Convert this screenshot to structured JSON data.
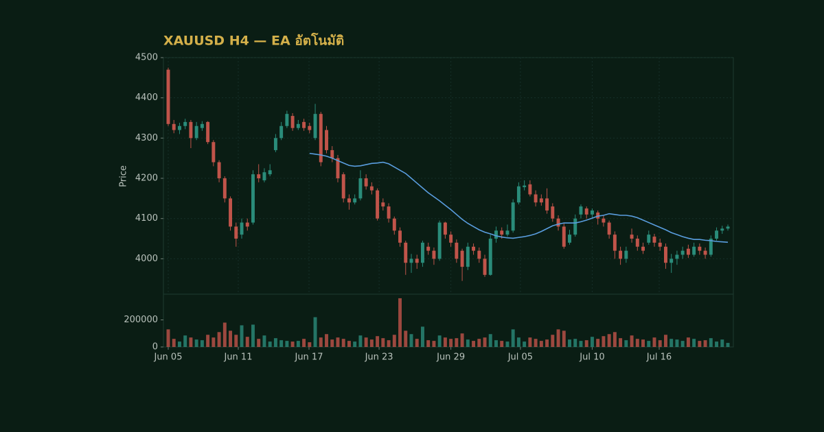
{
  "chart_data": {
    "type": "candlestick",
    "title": "XAUUSD H4 — EA อัตโนมัติ",
    "ylabel": "Price",
    "up_color": "#2a8c7a",
    "down_color": "#c0544a",
    "ma_color": "#5a9ee0",
    "grid": true,
    "xlim": [
      -0.85,
      99.97
    ],
    "xticks": [
      {
        "value": 0,
        "label": "Jun 05"
      },
      {
        "value": 12.39,
        "label": "Jun 11"
      },
      {
        "value": 24.9,
        "label": "Jun 17"
      },
      {
        "value": 37.3,
        "label": "Jun 23"
      },
      {
        "value": 50.0,
        "label": "Jun 29"
      },
      {
        "value": 62.3,
        "label": "Jul 05"
      },
      {
        "value": 75.0,
        "label": "Jul 10"
      },
      {
        "value": 86.85,
        "label": "Jul 16"
      }
    ],
    "ylim": [
      3912,
      4500
    ],
    "yticks": [
      4000,
      4100,
      4200,
      4300,
      4400,
      4500
    ],
    "y2lim": [
      0,
      390000
    ],
    "y2ticks": [
      0,
      200000
    ],
    "open": [
      4470,
      4335,
      4320,
      4330,
      4340,
      4300,
      4325,
      4340,
      4290,
      4240,
      4200,
      4150,
      4080,
      4060,
      4090,
      4090,
      4210,
      4195,
      4210,
      4270,
      4300,
      4330,
      4355,
      4325,
      4340,
      4330,
      4300,
      4360,
      4320,
      4270,
      4250,
      4210,
      4150,
      4140,
      4150,
      4200,
      4180,
      4170,
      4140,
      4130,
      4100,
      4070,
      4040,
      3990,
      4000,
      3990,
      4030,
      4020,
      4000,
      4090,
      4060,
      4040,
      4020,
      3980,
      4030,
      4020,
      4000,
      3960,
      4050,
      4070,
      4060,
      4070,
      4140,
      4178,
      4185,
      4160,
      4150,
      4150,
      4130,
      4100,
      4080,
      4040,
      4060,
      4110,
      4125,
      4110,
      4115,
      4100,
      4090,
      4060,
      4020,
      4000,
      4060,
      4050,
      4030,
      4040,
      4055,
      4040,
      4030,
      3990,
      4000,
      4010,
      4025,
      4010,
      4030,
      4020,
      4010,
      4050,
      4070,
      4075
    ],
    "high": [
      4475,
      4345,
      4338,
      4348,
      4345,
      4340,
      4342,
      4342,
      4295,
      4245,
      4205,
      4155,
      4090,
      4100,
      4100,
      4220,
      4235,
      4225,
      4235,
      4310,
      4340,
      4368,
      4362,
      4345,
      4348,
      4338,
      4385,
      4365,
      4330,
      4280,
      4258,
      4215,
      4160,
      4160,
      4220,
      4210,
      4190,
      4175,
      4150,
      4138,
      4105,
      4078,
      4045,
      4012,
      4010,
      4045,
      4040,
      4028,
      4095,
      4092,
      4068,
      4048,
      4025,
      4040,
      4038,
      4028,
      4010,
      4060,
      4080,
      4078,
      4085,
      4148,
      4190,
      4195,
      4195,
      4170,
      4160,
      4175,
      4138,
      4108,
      4090,
      4072,
      4110,
      4135,
      4130,
      4125,
      4120,
      4108,
      4095,
      4068,
      4030,
      4030,
      4075,
      4058,
      4040,
      4070,
      4062,
      4050,
      4038,
      4012,
      4020,
      4030,
      4035,
      4040,
      4038,
      4028,
      4058,
      4078,
      4082,
      4085
    ],
    "low": [
      4330,
      4312,
      4310,
      4322,
      4275,
      4295,
      4318,
      4285,
      4230,
      4190,
      4140,
      4070,
      4030,
      4050,
      4070,
      4085,
      4190,
      4190,
      4205,
      4265,
      4295,
      4325,
      4318,
      4320,
      4318,
      4312,
      4295,
      4230,
      4262,
      4240,
      4190,
      4140,
      4122,
      4135,
      4145,
      4172,
      4160,
      4095,
      4120,
      4090,
      4060,
      4030,
      3960,
      3965,
      3975,
      3980,
      4010,
      3985,
      3995,
      4050,
      4030,
      3990,
      3945,
      3972,
      4010,
      3990,
      3955,
      3958,
      4040,
      4050,
      4055,
      4065,
      4135,
      4170,
      4155,
      4130,
      4132,
      4112,
      4092,
      4070,
      4025,
      4035,
      4055,
      4100,
      4100,
      4100,
      4085,
      4080,
      4050,
      4000,
      3985,
      3990,
      4040,
      4020,
      4012,
      4035,
      4030,
      4020,
      3975,
      3965,
      3985,
      4000,
      4002,
      4005,
      4010,
      4000,
      4005,
      4045,
      4062,
      4070
    ],
    "close": [
      4335,
      4320,
      4330,
      4340,
      4300,
      4330,
      4335,
      4290,
      4240,
      4200,
      4150,
      4080,
      4050,
      4090,
      4080,
      4210,
      4200,
      4215,
      4220,
      4300,
      4330,
      4360,
      4325,
      4335,
      4325,
      4320,
      4360,
      4240,
      4270,
      4250,
      4200,
      4150,
      4140,
      4150,
      4200,
      4180,
      4170,
      4100,
      4130,
      4100,
      4070,
      4040,
      3990,
      4000,
      3990,
      4040,
      4020,
      4000,
      4090,
      4060,
      4040,
      4000,
      3980,
      4030,
      4020,
      4000,
      3960,
      4050,
      4070,
      4060,
      4070,
      4140,
      4180,
      4182,
      4160,
      4140,
      4140,
      4120,
      4100,
      4080,
      4030,
      4060,
      4100,
      4130,
      4110,
      4120,
      4100,
      4090,
      4060,
      4020,
      4000,
      4020,
      4050,
      4030,
      4020,
      4060,
      4040,
      4030,
      3990,
      4000,
      4010,
      4020,
      4010,
      4030,
      4020,
      4010,
      4050,
      4070,
      4075,
      4080
    ],
    "volume": [
      130000,
      60000,
      40000,
      85000,
      70000,
      55000,
      50000,
      90000,
      70000,
      110000,
      180000,
      120000,
      90000,
      160000,
      75000,
      165000,
      60000,
      85000,
      40000,
      65000,
      50000,
      45000,
      40000,
      45000,
      60000,
      35000,
      220000,
      70000,
      95000,
      55000,
      70000,
      60000,
      45000,
      40000,
      85000,
      70000,
      55000,
      80000,
      65000,
      50000,
      90000,
      360000,
      120000,
      95000,
      60000,
      150000,
      50000,
      45000,
      85000,
      70000,
      60000,
      65000,
      100000,
      55000,
      45000,
      60000,
      70000,
      95000,
      50000,
      45000,
      40000,
      130000,
      70000,
      40000,
      70000,
      60000,
      45000,
      55000,
      90000,
      130000,
      120000,
      55000,
      60000,
      45000,
      50000,
      75000,
      60000,
      80000,
      95000,
      110000,
      65000,
      50000,
      85000,
      60000,
      55000,
      45000,
      70000,
      50000,
      90000,
      60000,
      55000,
      45000,
      70000,
      60000,
      45000,
      50000,
      65000,
      40000,
      55000,
      30000
    ],
    "ma": [
      null,
      null,
      null,
      null,
      null,
      null,
      null,
      null,
      null,
      null,
      null,
      null,
      null,
      null,
      null,
      null,
      null,
      null,
      null,
      null,
      null,
      null,
      null,
      null,
      null,
      4262,
      4260,
      4258,
      4255,
      4250,
      4244,
      4238,
      4232,
      4230,
      4231,
      4234,
      4237,
      4238,
      4240,
      4236,
      4228,
      4220,
      4212,
      4200,
      4188,
      4176,
      4164,
      4154,
      4144,
      4133,
      4122,
      4110,
      4098,
      4088,
      4080,
      4072,
      4066,
      4062,
      4057,
      4054,
      4052,
      4051,
      4053,
      4055,
      4058,
      4062,
      4068,
      4075,
      4082,
      4086,
      4089,
      4089,
      4089,
      4092,
      4096,
      4101,
      4106,
      4108,
      4112,
      4110,
      4108,
      4108,
      4106,
      4102,
      4096,
      4090,
      4084,
      4078,
      4072,
      4065,
      4060,
      4055,
      4051,
      4048,
      4048,
      4046,
      4045,
      4043,
      4042,
      4041
    ]
  }
}
